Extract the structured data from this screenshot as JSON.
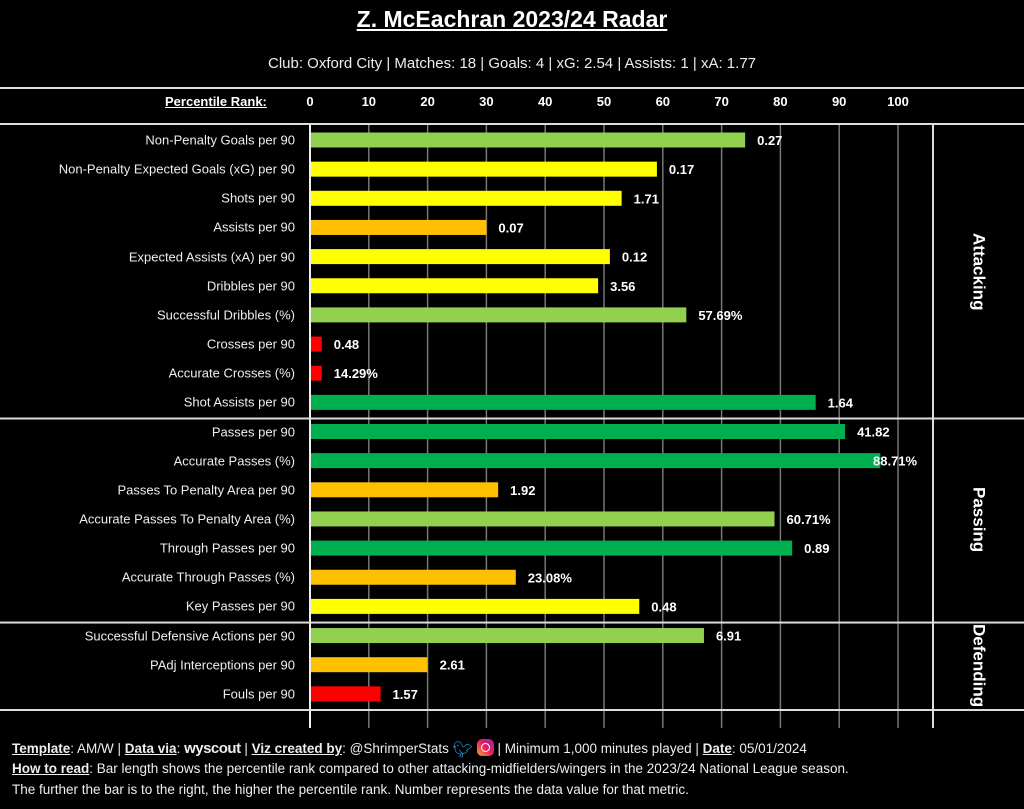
{
  "header": {
    "title": "Z. McEachran 2023/24 Radar",
    "subtitle": "Club: Oxford City | Matches: 18 | Goals: 4 | xG: 2.54 | Assists: 1 | xA: 1.77"
  },
  "chart_data": {
    "type": "bar",
    "orientation": "horizontal",
    "title": "Z. McEachran 2023/24 Radar",
    "xlabel": "Percentile Rank:",
    "xlim": [
      0,
      100
    ],
    "xticks": [
      "0",
      "10",
      "20",
      "30",
      "40",
      "50",
      "60",
      "70",
      "80",
      "90",
      "100"
    ],
    "grid": true,
    "colors": {
      "elite": "#00b050",
      "good": "#92d050",
      "average": "#ffff00",
      "below": "#ffc000",
      "poor": "#ff0000"
    },
    "sections": [
      {
        "name": "Attacking",
        "metrics": [
          {
            "label": "Non-Penalty Goals per 90",
            "percentile": 74,
            "value": "0.27",
            "color": "#92d050"
          },
          {
            "label": "Non-Penalty Expected Goals (xG) per 90",
            "percentile": 59,
            "value": "0.17",
            "color": "#ffff00"
          },
          {
            "label": "Shots per 90",
            "percentile": 53,
            "value": "1.71",
            "color": "#ffff00"
          },
          {
            "label": "Assists per 90",
            "percentile": 30,
            "value": "0.07",
            "color": "#ffc000"
          },
          {
            "label": "Expected Assists (xA) per 90",
            "percentile": 51,
            "value": "0.12",
            "color": "#ffff00"
          },
          {
            "label": "Dribbles per 90",
            "percentile": 49,
            "value": "3.56",
            "color": "#ffff00"
          },
          {
            "label": "Successful Dribbles (%)",
            "percentile": 64,
            "value": "57.69%",
            "color": "#92d050"
          },
          {
            "label": "Crosses per 90",
            "percentile": 2,
            "value": "0.48",
            "color": "#ff0000"
          },
          {
            "label": "Accurate Crosses (%)",
            "percentile": 2,
            "value": "14.29%",
            "color": "#ff0000"
          },
          {
            "label": "Shot Assists per 90",
            "percentile": 86,
            "value": "1.64",
            "color": "#00b050"
          }
        ]
      },
      {
        "name": "Passing",
        "metrics": [
          {
            "label": "Passes per 90",
            "percentile": 91,
            "value": "41.82",
            "color": "#00b050"
          },
          {
            "label": "Accurate Passes (%)",
            "percentile": 97,
            "value": "88.71%",
            "color": "#00b050"
          },
          {
            "label": "Passes To Penalty Area per 90",
            "percentile": 32,
            "value": "1.92",
            "color": "#ffc000"
          },
          {
            "label": "Accurate Passes To Penalty Area (%)",
            "percentile": 79,
            "value": "60.71%",
            "color": "#92d050"
          },
          {
            "label": "Through Passes per 90",
            "percentile": 82,
            "value": "0.89",
            "color": "#00b050"
          },
          {
            "label": "Accurate Through Passes (%)",
            "percentile": 35,
            "value": "23.08%",
            "color": "#ffc000"
          },
          {
            "label": "Key Passes per 90",
            "percentile": 56,
            "value": "0.48",
            "color": "#ffff00"
          }
        ]
      },
      {
        "name": "Defending",
        "metrics": [
          {
            "label": "Successful Defensive Actions per 90",
            "percentile": 67,
            "value": "6.91",
            "color": "#92d050"
          },
          {
            "label": "PAdj Interceptions per 90",
            "percentile": 20,
            "value": "2.61",
            "color": "#ffc000"
          },
          {
            "label": "Fouls per 90",
            "percentile": 12,
            "value": "1.57",
            "color": "#ff0000"
          }
        ]
      }
    ]
  },
  "footer": {
    "template_label": "Template",
    "template_value": ": AM/W | ",
    "data_via_label": "Data via",
    "data_via_sep": ": ",
    "data_source": "wyscout",
    "viz_label": "Viz created by",
    "viz_value": ": @ShrimperStats",
    "twitter_icon": "twitter-icon",
    "instagram_icon": "instagram-icon",
    "minimum": " | Minimum 1,000 minutes played | ",
    "date_label": "Date",
    "date_value": ": 05/01/2024",
    "how_label": "How to read",
    "how_text": ": Bar length shows the percentile rank compared to other attacking-midfielders/wingers in the 2023/24 National League season.",
    "how_text2": "The further the bar is to the right, the higher the percentile rank. Number represents the data value for that metric."
  }
}
